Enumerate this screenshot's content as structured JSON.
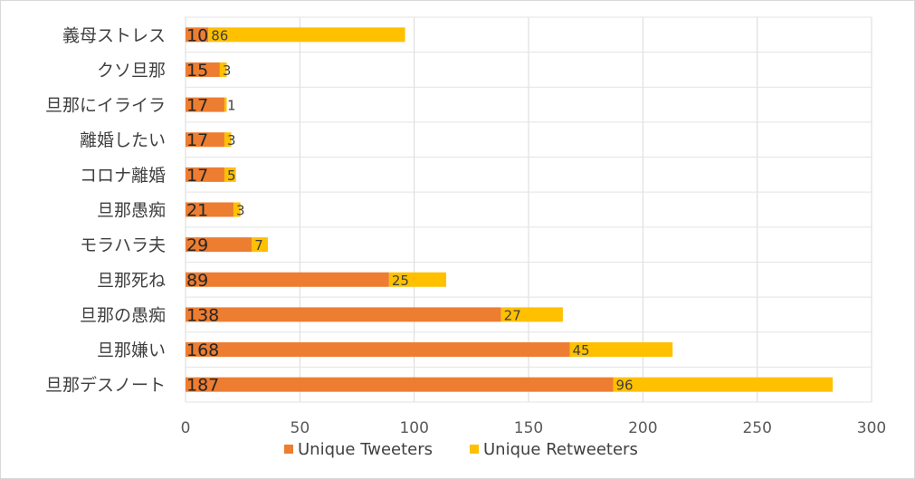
{
  "chart_data": {
    "type": "bar",
    "orientation": "horizontal",
    "stacked": true,
    "categories": [
      "義母ストレス",
      "クソ旦那",
      "旦那にイライラ",
      "離婚したい",
      "コロナ離婚",
      "旦那愚痴",
      "モラハラ夫",
      "旦那死ね",
      "旦那の愚痴",
      "旦那嫌い",
      "旦那デスノート"
    ],
    "series": [
      {
        "name": "Unique Tweeters",
        "color": "#ED7D31",
        "values": [
          10,
          15,
          17,
          17,
          17,
          21,
          29,
          89,
          138,
          168,
          187
        ]
      },
      {
        "name": "Unique Retweeters",
        "color": "#FFC000",
        "values": [
          86,
          3,
          1,
          3,
          5,
          3,
          7,
          25,
          27,
          45,
          96
        ]
      }
    ],
    "xlim": [
      0,
      300
    ],
    "xticks": [
      0,
      50,
      100,
      150,
      200,
      250,
      300
    ],
    "xtick_labels": [
      "0",
      "50",
      "100",
      "150",
      "200",
      "250",
      "300"
    ],
    "grid": true,
    "legend_position": "bottom",
    "title": "",
    "xlabel": "",
    "ylabel": ""
  }
}
